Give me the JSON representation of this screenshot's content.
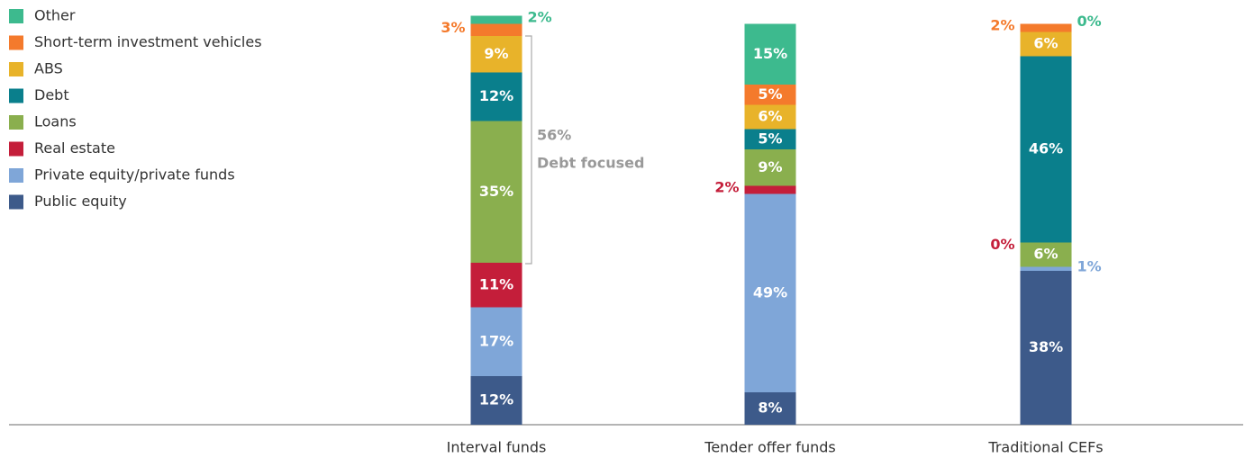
{
  "chart_data": {
    "type": "bar",
    "stacked": true,
    "categories": [
      "Interval funds",
      "Tender offer funds",
      "Traditional CEFs"
    ],
    "series": [
      {
        "name": "Public equity",
        "color": "#3d5a8a",
        "values": [
          12,
          8,
          38
        ],
        "value_labels": [
          "12%",
          "8%",
          "38%"
        ]
      },
      {
        "name": "Private equity/private funds",
        "color": "#7fa6d8",
        "values": [
          17,
          49,
          1
        ],
        "value_labels": [
          "17%",
          "49%",
          "1%"
        ]
      },
      {
        "name": "Real estate",
        "color": "#c41e3a",
        "values": [
          11,
          2,
          0
        ],
        "value_labels": [
          "11%",
          "2%",
          "0%"
        ]
      },
      {
        "name": "Loans",
        "color": "#8aaf4e",
        "values": [
          35,
          9,
          6
        ],
        "value_labels": [
          "35%",
          "9%",
          "6%"
        ]
      },
      {
        "name": "Debt",
        "color": "#0a7f8c",
        "values": [
          12,
          5,
          46
        ],
        "value_labels": [
          "12%",
          "5%",
          "46%"
        ]
      },
      {
        "name": "ABS",
        "color": "#e8b32a",
        "values": [
          9,
          6,
          6
        ],
        "value_labels": [
          "9%",
          "6%",
          "6%"
        ]
      },
      {
        "name": "Short-term investment vehicles",
        "color": "#f47a2c",
        "values": [
          3,
          5,
          2
        ],
        "value_labels": [
          "3%",
          "5%",
          "2%"
        ]
      },
      {
        "name": "Other",
        "color": "#3dba8e",
        "values": [
          2,
          15,
          0
        ],
        "value_labels": [
          "2%",
          "15%",
          "0%"
        ]
      }
    ],
    "ylim": [
      0,
      101
    ],
    "annotations": [
      "56%",
      "Debt focused"
    ],
    "legend": "top-left"
  }
}
